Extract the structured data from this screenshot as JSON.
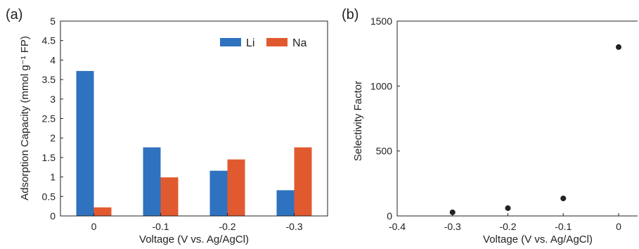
{
  "panels": [
    "(a)",
    "(b)"
  ],
  "colors": {
    "li": "#2f72bf",
    "na": "#e15a2f",
    "marker": "#222222",
    "axis": "#222222"
  },
  "chart_data": [
    {
      "type": "bar",
      "categories": [
        "0",
        "-0.1",
        "-0.2",
        "-0.3"
      ],
      "series": [
        {
          "name": "Li",
          "values": [
            3.72,
            1.76,
            1.16,
            0.66
          ]
        },
        {
          "name": "Na",
          "values": [
            0.22,
            0.99,
            1.45,
            1.76
          ]
        }
      ],
      "xlabel": "Voltage (V vs. Ag/AgCl)",
      "ylabel": "Adsorption Capacity (mmol g⁻¹ FP)",
      "ylim": [
        0,
        5
      ],
      "yticks": [
        "0",
        "0.5",
        "1",
        "1.5",
        "2",
        "2.5",
        "3",
        "3.5",
        "4",
        "4.5",
        "5"
      ],
      "legend_position": "top-right",
      "grid": false
    },
    {
      "type": "scatter",
      "x": [
        -0.3,
        -0.2,
        -0.1,
        0
      ],
      "y": [
        28,
        60,
        135,
        1300
      ],
      "xlabel": "Voltage (V vs. Ag/AgCl)",
      "ylabel": "Selectivity Factor",
      "xlim": [
        -0.4,
        0.1
      ],
      "ylim": [
        0,
        1500
      ],
      "xticks": [
        "-0.4",
        "-0.3",
        "-0.2",
        "-0.1",
        "0"
      ],
      "yticks": [
        "0",
        "500",
        "1000",
        "1500"
      ],
      "grid": false
    }
  ]
}
